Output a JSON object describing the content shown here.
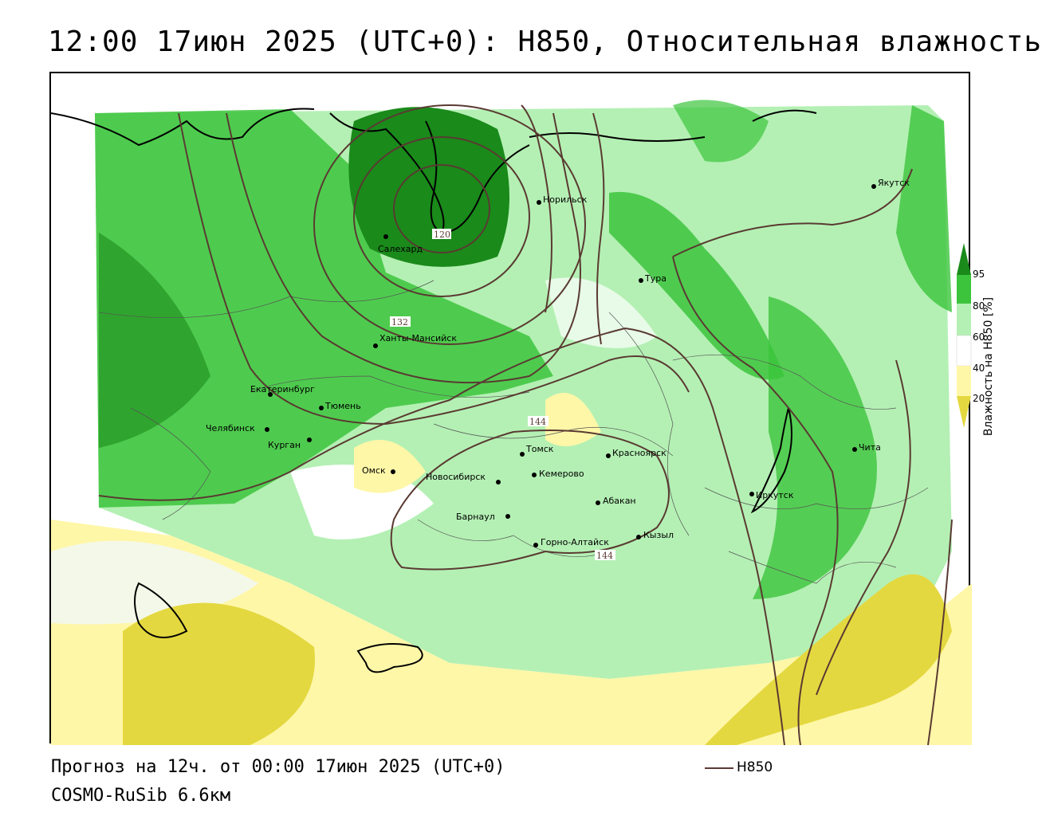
{
  "title": "12:00 17июн 2025 (UTC+0): H850, Относительная влажность",
  "forecast_line": "Прогноз на 12ч. от 00:00 17июн 2025 (UTC+0)",
  "model_line": "COSMO-RuSib 6.6км",
  "legend": {
    "line_label": "H850",
    "line_color": "#5a3a32"
  },
  "colorbar": {
    "title": "Влажность на H850 [%]",
    "ticks": [
      "95",
      "80",
      "60",
      "40",
      "20"
    ],
    "colors": {
      "dark_green": "#1a8a1a",
      "green": "#3cc43c",
      "light_green": "#b4f0b4",
      "white": "#ffffff",
      "light_yellow": "#fff7a8",
      "yellow": "#e4d840"
    }
  },
  "contour_labels": [
    "120",
    "132",
    "144",
    "144"
  ],
  "cities": [
    {
      "name": "Норильск"
    },
    {
      "name": "Якутск"
    },
    {
      "name": "Салехард"
    },
    {
      "name": "Тура"
    },
    {
      "name": "Ханты-Мансийск"
    },
    {
      "name": "Екатеринбург"
    },
    {
      "name": "Тюмень"
    },
    {
      "name": "Челябинск"
    },
    {
      "name": "Курган"
    },
    {
      "name": "Омск"
    },
    {
      "name": "Томск"
    },
    {
      "name": "Красноярск"
    },
    {
      "name": "Новосибирск"
    },
    {
      "name": "Кемерово"
    },
    {
      "name": "Абакан"
    },
    {
      "name": "Барнаул"
    },
    {
      "name": "Кызыл"
    },
    {
      "name": "Горно-Алтайск"
    },
    {
      "name": "Иркутск"
    },
    {
      "name": "Чита"
    }
  ]
}
